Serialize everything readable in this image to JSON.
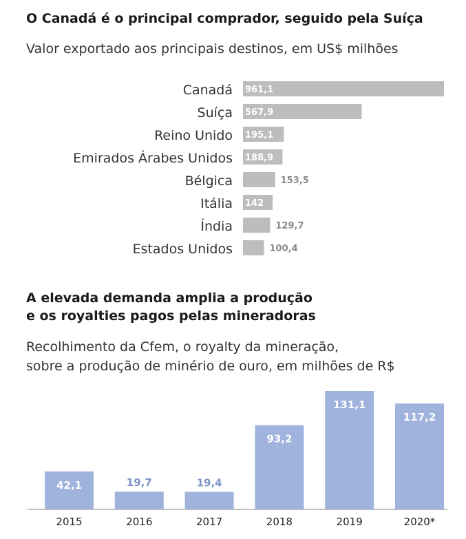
{
  "chart_data": [
    {
      "type": "bar",
      "orientation": "horizontal",
      "title": "O Canadá é o principal comprador, seguido pela Suíça",
      "subtitle": "Valor exportado aos principais destinos, em US$ milhões",
      "categories": [
        "Canadá",
        "Suíça",
        "Reino Unido",
        "Emirados Árabes Unidos",
        "Bélgica",
        "Itália",
        "Índia",
        "Estados Unidos"
      ],
      "values": [
        961.1,
        567.9,
        195.1,
        188.9,
        153.5,
        142,
        129.7,
        100.4
      ],
      "value_labels": [
        "961,1",
        "567,9",
        "195,1",
        "188,9",
        "153,5",
        "142",
        "129,7",
        "100,4"
      ],
      "color": "#bdbdbd",
      "grid": false
    },
    {
      "type": "bar",
      "orientation": "vertical",
      "title_lines": [
        "A elevada demanda amplia a produção",
        "e os royalties pagos pelas mineradoras"
      ],
      "subtitle_lines": [
        "Recolhimento da Cfem, o royalty da mineração,",
        "sobre a produção de minério de ouro, em milhões de R$"
      ],
      "categories": [
        "2015",
        "2016",
        "2017",
        "2018",
        "2019",
        "2020*"
      ],
      "values": [
        42.1,
        19.7,
        19.4,
        93.2,
        131.1,
        117.2
      ],
      "value_labels": [
        "42,1",
        "19,7",
        "19,4",
        "93,2",
        "131,1",
        "117,2"
      ],
      "color": "#9fb3dc",
      "grid": false
    }
  ]
}
